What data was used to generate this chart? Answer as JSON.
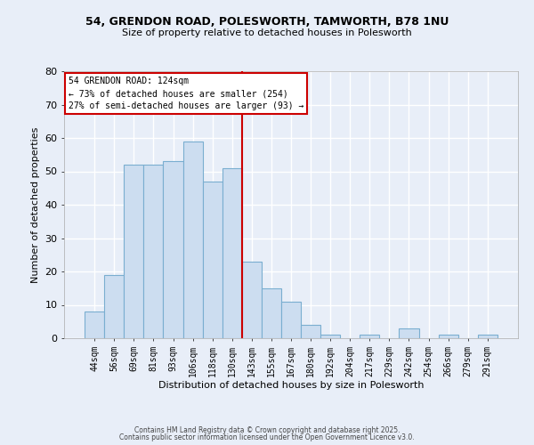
{
  "title1": "54, GRENDON ROAD, POLESWORTH, TAMWORTH, B78 1NU",
  "title2": "Size of property relative to detached houses in Polesworth",
  "xlabel": "Distribution of detached houses by size in Polesworth",
  "ylabel": "Number of detached properties",
  "bar_labels": [
    "44sqm",
    "56sqm",
    "69sqm",
    "81sqm",
    "93sqm",
    "106sqm",
    "118sqm",
    "130sqm",
    "143sqm",
    "155sqm",
    "167sqm",
    "180sqm",
    "192sqm",
    "204sqm",
    "217sqm",
    "229sqm",
    "242sqm",
    "254sqm",
    "266sqm",
    "279sqm",
    "291sqm"
  ],
  "bar_values": [
    8,
    19,
    52,
    52,
    53,
    59,
    47,
    51,
    23,
    15,
    11,
    4,
    1,
    0,
    1,
    0,
    3,
    0,
    1,
    0,
    1
  ],
  "bar_color": "#ccddf0",
  "bar_edge_color": "#7aaed0",
  "ylim": [
    0,
    80
  ],
  "yticks": [
    0,
    10,
    20,
    30,
    40,
    50,
    60,
    70,
    80
  ],
  "vline_color": "#cc0000",
  "vline_pos": 7.5,
  "annotation_title": "54 GRENDON ROAD: 124sqm",
  "annotation_line1": "← 73% of detached houses are smaller (254)",
  "annotation_line2": "27% of semi-detached houses are larger (93) →",
  "annotation_box_color": "#ffffff",
  "annotation_box_edge": "#cc0000",
  "footer1": "Contains HM Land Registry data © Crown copyright and database right 2025.",
  "footer2": "Contains public sector information licensed under the Open Government Licence v3.0.",
  "background_color": "#e8eef8",
  "grid_color": "#ffffff",
  "title_fontsize": 9,
  "subtitle_fontsize": 8,
  "ylabel_fontsize": 8,
  "xlabel_fontsize": 8
}
